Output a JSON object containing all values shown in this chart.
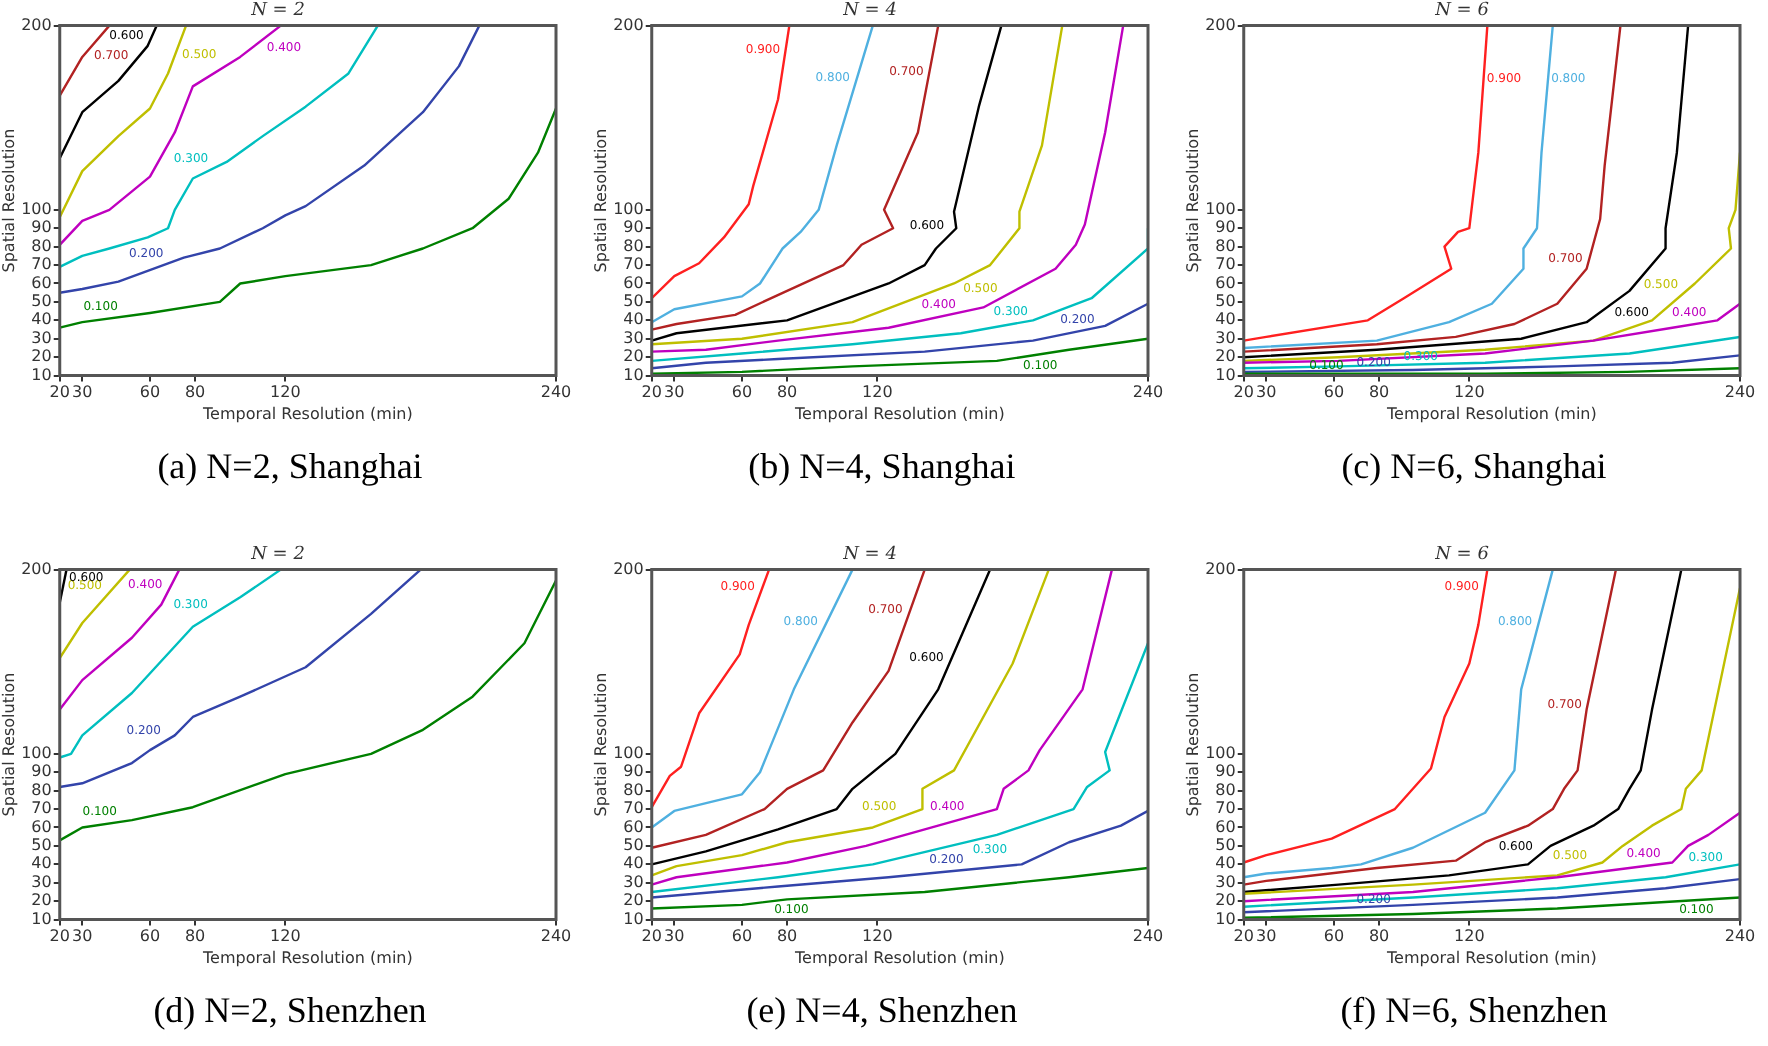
{
  "chart_data": [
    {
      "type": "line",
      "title": "N = 2",
      "xlabel": "Temporal Resolution (min)",
      "ylabel": "Spatial Resolution",
      "xlim": [
        20,
        240
      ],
      "xticks": [
        20,
        30,
        60,
        80,
        120,
        240
      ],
      "ylim": [
        10,
        200
      ],
      "yticks": [
        10,
        20,
        30,
        40,
        50,
        60,
        70,
        80,
        90,
        100,
        200
      ],
      "marker": "none",
      "annotations": [
        "(a) N=2, Shanghai"
      ],
      "series": [
        {
          "name": "0.100",
          "color": "#008000",
          "x": [
            20,
            30,
            60,
            91,
            100,
            120,
            158,
            181,
            203,
            219,
            232,
            240
          ],
          "values": [
            36,
            39,
            44,
            50,
            60,
            64,
            70,
            79,
            90,
            106,
            131,
            155
          ]
        },
        {
          "name": "0.200",
          "color": "#3344aa",
          "x": [
            20,
            30,
            46,
            75,
            91,
            110,
            120,
            129,
            155,
            181,
            197,
            206
          ],
          "values": [
            55,
            57,
            61,
            74,
            79,
            90,
            97,
            102,
            124,
            153,
            178,
            200
          ]
        },
        {
          "name": "0.300",
          "color": "#00bfbf",
          "x": [
            20,
            30,
            42,
            59,
            68,
            71,
            79,
            94,
            110,
            129,
            148,
            161
          ],
          "values": [
            69,
            75,
            79,
            85,
            90,
            100,
            117,
            126,
            140,
            156,
            174,
            200
          ]
        },
        {
          "name": "0.400",
          "color": "#bf00bf",
          "x": [
            20,
            30,
            42,
            60,
            71,
            79,
            100,
            118
          ],
          "values": [
            81,
            94,
            100,
            118,
            142,
            167,
            183,
            200
          ]
        },
        {
          "name": "0.500",
          "color": "#bfbf00",
          "x": [
            20,
            30,
            46,
            60,
            68,
            76
          ],
          "values": [
            96,
            121,
            140,
            155,
            174,
            200
          ]
        },
        {
          "name": "0.600",
          "color": "#000000",
          "x": [
            20,
            30,
            46,
            59,
            63
          ],
          "values": [
            128,
            153,
            170,
            189,
            200
          ]
        },
        {
          "name": "0.700",
          "color": "#b22222",
          "x": [
            20,
            30,
            42
          ],
          "values": [
            162,
            183,
            200
          ]
        }
      ]
    },
    {
      "type": "line",
      "title": "N = 4",
      "xlabel": "Temporal Resolution (min)",
      "ylabel": "Spatial Resolution",
      "xlim": [
        20,
        240
      ],
      "xticks": [
        20,
        30,
        60,
        80,
        120,
        240
      ],
      "ylim": [
        10,
        200
      ],
      "yticks": [
        10,
        20,
        30,
        40,
        50,
        60,
        70,
        80,
        90,
        100,
        200
      ],
      "marker": "none",
      "annotations": [
        "(b) N=4, Shanghai"
      ],
      "series": [
        {
          "name": "0.100",
          "color": "#008000",
          "x": [
            20,
            60,
            109,
            173,
            205,
            240
          ],
          "values": [
            11,
            12,
            15,
            18,
            24,
            30
          ]
        },
        {
          "name": "0.200",
          "color": "#3344aa",
          "x": [
            20,
            44,
            76,
            141,
            189,
            221,
            240
          ],
          "values": [
            14,
            17,
            19,
            23,
            29,
            37,
            49
          ]
        },
        {
          "name": "0.300",
          "color": "#00bfbf",
          "x": [
            20,
            60,
            109,
            157,
            189,
            215,
            240,
            240
          ],
          "values": [
            18,
            22,
            27,
            33,
            40,
            52,
            79,
            90
          ]
        },
        {
          "name": "0.400",
          "color": "#bf00bf",
          "x": [
            20,
            44,
            76,
            125,
            167,
            199,
            208,
            212,
            221,
            229
          ],
          "values": [
            23,
            24,
            29,
            36,
            47,
            68,
            81,
            92,
            142,
            200
          ]
        },
        {
          "name": "0.500",
          "color": "#bfbf00",
          "x": [
            20,
            60,
            109,
            154,
            170,
            183,
            183,
            193,
            202
          ],
          "values": [
            27,
            30,
            39,
            60,
            70,
            90,
            99,
            135,
            200
          ]
        },
        {
          "name": "0.600",
          "color": "#000000",
          "x": [
            20,
            31,
            80,
            125,
            141,
            146,
            155,
            154,
            165,
            175
          ],
          "values": [
            29,
            33,
            40,
            60,
            70,
            79,
            90,
            99,
            156,
            200
          ]
        },
        {
          "name": "0.700",
          "color": "#b22222",
          "x": [
            20,
            31,
            57,
            80,
            105,
            113,
            127,
            123,
            138,
            147
          ],
          "values": [
            35,
            38,
            43,
            56,
            70,
            81,
            90,
            100,
            142,
            200
          ]
        },
        {
          "name": "0.800",
          "color": "#4fb0e0",
          "x": [
            20,
            30,
            60,
            68,
            78,
            86,
            94,
            102,
            118
          ],
          "values": [
            39,
            46,
            53,
            60,
            79,
            88,
            100,
            135,
            200
          ]
        },
        {
          "name": "0.900",
          "color": "#ff2020",
          "x": [
            20,
            30,
            41,
            52,
            63,
            65,
            76,
            81
          ],
          "values": [
            52,
            64,
            71,
            85,
            103,
            113,
            160,
            200
          ]
        }
      ]
    },
    {
      "type": "line",
      "title": "N = 6",
      "xlabel": "Temporal Resolution (min)",
      "ylabel": "Spatial Resolution",
      "xlim": [
        20,
        240
      ],
      "xticks": [
        20,
        30,
        60,
        80,
        120,
        240
      ],
      "ylim": [
        10,
        200
      ],
      "yticks": [
        10,
        20,
        30,
        40,
        50,
        60,
        70,
        80,
        90,
        100,
        200
      ],
      "marker": "none",
      "annotations": [
        "(c) N=6, Shanghai"
      ],
      "series": [
        {
          "name": "0.100",
          "color": "#008000",
          "x": [
            20,
            127,
            190,
            240
          ],
          "values": [
            11,
            11,
            12,
            14
          ]
        },
        {
          "name": "0.200",
          "color": "#3344aa",
          "x": [
            20,
            95,
            159,
            210,
            240
          ],
          "values": [
            12,
            13,
            15,
            17,
            21
          ]
        },
        {
          "name": "0.300",
          "color": "#00bfbf",
          "x": [
            20,
            62,
            127,
            191,
            240
          ],
          "values": [
            14,
            15,
            17,
            22,
            31
          ]
        },
        {
          "name": "0.400",
          "color": "#bf00bf",
          "x": [
            20,
            62,
            127,
            175,
            210,
            230,
            240
          ],
          "values": [
            17,
            18,
            22,
            29,
            36,
            40,
            49
          ]
        },
        {
          "name": "0.500",
          "color": "#bfbf00",
          "x": [
            20,
            62,
            127,
            175,
            201,
            220,
            236,
            235,
            238,
            240
          ],
          "values": [
            18,
            20,
            24,
            29,
            40,
            60,
            79,
            90,
            100,
            131
          ]
        },
        {
          "name": "0.600",
          "color": "#000000",
          "x": [
            20,
            79,
            143,
            172,
            191,
            207,
            207,
            212,
            217
          ],
          "values": [
            20,
            24,
            30,
            39,
            56,
            79,
            90,
            131,
            200
          ]
        },
        {
          "name": "0.700",
          "color": "#b22222",
          "x": [
            20,
            79,
            114,
            140,
            159,
            172,
            178,
            180,
            187
          ],
          "values": [
            23,
            27,
            31,
            38,
            49,
            68,
            95,
            124,
            200
          ]
        },
        {
          "name": "0.800",
          "color": "#4fb0e0",
          "x": [
            20,
            79,
            111,
            130,
            144,
            144,
            150,
            152,
            157
          ],
          "values": [
            25,
            29,
            39,
            49,
            68,
            79,
            90,
            131,
            200
          ]
        },
        {
          "name": "0.900",
          "color": "#ff2020",
          "x": [
            20,
            30,
            75,
            91,
            112,
            109,
            115,
            120,
            124,
            128
          ],
          "values": [
            29,
            31,
            40,
            52,
            68,
            80,
            88,
            90,
            131,
            200
          ]
        }
      ]
    },
    {
      "type": "line",
      "title": "N = 2",
      "xlabel": "Temporal Resolution (min)",
      "ylabel": "Spatial Resolution",
      "xlim": [
        20,
        240
      ],
      "xticks": [
        20,
        30,
        60,
        80,
        120,
        240
      ],
      "ylim": [
        10,
        200
      ],
      "yticks": [
        10,
        20,
        30,
        40,
        50,
        60,
        70,
        80,
        90,
        100,
        200
      ],
      "marker": "none",
      "annotations": [
        "(d) N=2, Shenzhen"
      ],
      "series": [
        {
          "name": "0.100",
          "color": "#008000",
          "x": [
            20,
            30,
            52,
            79,
            120,
            158,
            181,
            203,
            226,
            240
          ],
          "values": [
            53,
            60,
            64,
            71,
            89,
            100,
            113,
            131,
            160,
            194
          ]
        },
        {
          "name": "0.200",
          "color": "#3344aa",
          "x": [
            20,
            30,
            52,
            60,
            71,
            79,
            100,
            129,
            158,
            180
          ],
          "values": [
            82,
            84,
            95,
            102,
            110,
            120,
            131,
            147,
            176,
            200
          ]
        },
        {
          "name": "0.300",
          "color": "#00bfbf",
          "x": [
            20,
            25,
            30,
            52,
            79,
            100,
            118
          ],
          "values": [
            98,
            100,
            110,
            133,
            169,
            185,
            200
          ]
        },
        {
          "name": "0.400",
          "color": "#bf00bf",
          "x": [
            20,
            30,
            52,
            65,
            73
          ],
          "values": [
            124,
            140,
            163,
            181,
            200
          ]
        },
        {
          "name": "0.500",
          "color": "#bfbf00",
          "x": [
            20,
            30,
            51
          ],
          "values": [
            152,
            171,
            200
          ]
        },
        {
          "name": "0.600",
          "color": "#000000",
          "x": [
            20,
            23
          ],
          "values": [
            182,
            200
          ]
        }
      ]
    },
    {
      "type": "line",
      "title": "N = 4",
      "xlabel": "Temporal Resolution (min)",
      "ylabel": "Spatial Resolution",
      "xlim": [
        20,
        240
      ],
      "xticks": [
        20,
        30,
        60,
        80,
        120,
        240
      ],
      "ylim": [
        10,
        200
      ],
      "yticks": [
        10,
        20,
        30,
        40,
        50,
        60,
        70,
        80,
        90,
        100,
        200
      ],
      "marker": "none",
      "annotations": [
        "(e) N=4, Shenzhen"
      ],
      "series": [
        {
          "name": "0.100",
          "color": "#008000",
          "x": [
            20,
            60,
            80,
            141,
            205,
            240
          ],
          "values": [
            16,
            18,
            21,
            25,
            33,
            38
          ]
        },
        {
          "name": "0.200",
          "color": "#3344aa",
          "x": [
            20,
            76,
            125,
            184,
            205,
            228,
            240
          ],
          "values": [
            22,
            28,
            33,
            40,
            52,
            61,
            69
          ]
        },
        {
          "name": "0.300",
          "color": "#00bfbf",
          "x": [
            20,
            76,
            118,
            173,
            207,
            213,
            223,
            221,
            240
          ],
          "values": [
            25,
            33,
            40,
            56,
            70,
            82,
            91,
            101,
            160
          ]
        },
        {
          "name": "0.400",
          "color": "#bf00bf",
          "x": [
            20,
            31,
            80,
            115,
            173,
            176,
            187,
            192,
            211,
            224
          ],
          "values": [
            29,
            33,
            41,
            50,
            70,
            81,
            91,
            102,
            135,
            200
          ]
        },
        {
          "name": "0.500",
          "color": "#bfbf00",
          "x": [
            20,
            31,
            60,
            80,
            118,
            140,
            140,
            154,
            180,
            196
          ],
          "values": [
            34,
            39,
            45,
            52,
            60,
            70,
            81,
            91,
            149,
            200
          ]
        },
        {
          "name": "0.600",
          "color": "#000000",
          "x": [
            20,
            44,
            76,
            102,
            109,
            128,
            147,
            170
          ],
          "values": [
            40,
            47,
            59,
            70,
            81,
            100,
            135,
            200
          ]
        },
        {
          "name": "0.700",
          "color": "#b22222",
          "x": [
            20,
            44,
            70,
            80,
            96,
            109,
            125,
            141
          ],
          "values": [
            49,
            56,
            70,
            81,
            91,
            117,
            145,
            200
          ]
        },
        {
          "name": "0.800",
          "color": "#4fb0e0",
          "x": [
            20,
            30,
            60,
            68,
            72,
            83,
            109
          ],
          "values": [
            60,
            69,
            78,
            90,
            102,
            135,
            200
          ]
        },
        {
          "name": "0.900",
          "color": "#ff2020",
          "x": [
            20,
            28,
            33,
            41,
            59,
            63,
            72
          ],
          "values": [
            71,
            88,
            93,
            122,
            154,
            170,
            200
          ]
        }
      ]
    },
    {
      "type": "line",
      "title": "N = 6",
      "xlabel": "Temporal Resolution (min)",
      "ylabel": "Spatial Resolution",
      "xlim": [
        20,
        240
      ],
      "xticks": [
        20,
        30,
        60,
        80,
        120,
        240
      ],
      "ylim": [
        10,
        200
      ],
      "yticks": [
        10,
        20,
        30,
        40,
        50,
        60,
        70,
        80,
        90,
        100,
        200
      ],
      "marker": "none",
      "annotations": [
        "(f) N=6, Shenzhen"
      ],
      "series": [
        {
          "name": "0.100",
          "color": "#008000",
          "x": [
            20,
            95,
            159,
            240
          ],
          "values": [
            11,
            13,
            16,
            22
          ]
        },
        {
          "name": "0.200",
          "color": "#3344aa",
          "x": [
            20,
            95,
            159,
            207,
            240
          ],
          "values": [
            14,
            18,
            22,
            27,
            32
          ]
        },
        {
          "name": "0.300",
          "color": "#00bfbf",
          "x": [
            20,
            95,
            159,
            207,
            240
          ],
          "values": [
            17,
            22,
            27,
            33,
            40
          ]
        },
        {
          "name": "0.400",
          "color": "#bf00bf",
          "x": [
            20,
            95,
            159,
            210,
            217,
            226,
            240
          ],
          "values": [
            20,
            25,
            33,
            41,
            50,
            56,
            68
          ]
        },
        {
          "name": "0.500",
          "color": "#bfbf00",
          "x": [
            20,
            95,
            159,
            179,
            188,
            201,
            214,
            216,
            223,
            240
          ],
          "values": [
            24,
            29,
            34,
            41,
            50,
            61,
            70,
            81,
            91,
            190
          ]
        },
        {
          "name": "0.600",
          "color": "#000000",
          "x": [
            20,
            62,
            111,
            146,
            156,
            175,
            186,
            191,
            196,
            201,
            214
          ],
          "values": [
            25,
            29,
            34,
            40,
            50,
            61,
            70,
            81,
            91,
            124,
            200
          ]
        },
        {
          "name": "0.700",
          "color": "#b22222",
          "x": [
            20,
            30,
            79,
            114,
            127,
            146,
            157,
            162,
            168,
            172,
            185
          ],
          "values": [
            29,
            31,
            38,
            42,
            52,
            61,
            70,
            81,
            91,
            124,
            200
          ]
        },
        {
          "name": "0.800",
          "color": "#4fb0e0",
          "x": [
            20,
            30,
            59,
            72,
            95,
            127,
            140,
            143,
            157
          ],
          "values": [
            33,
            35,
            38,
            40,
            49,
            68,
            91,
            135,
            200
          ]
        },
        {
          "name": "0.900",
          "color": "#ff2020",
          "x": [
            20,
            30,
            59,
            87,
            95,
            103,
            109,
            120,
            124,
            128
          ],
          "values": [
            41,
            45,
            54,
            70,
            81,
            92,
            120,
            149,
            170,
            200
          ]
        }
      ]
    }
  ]
}
